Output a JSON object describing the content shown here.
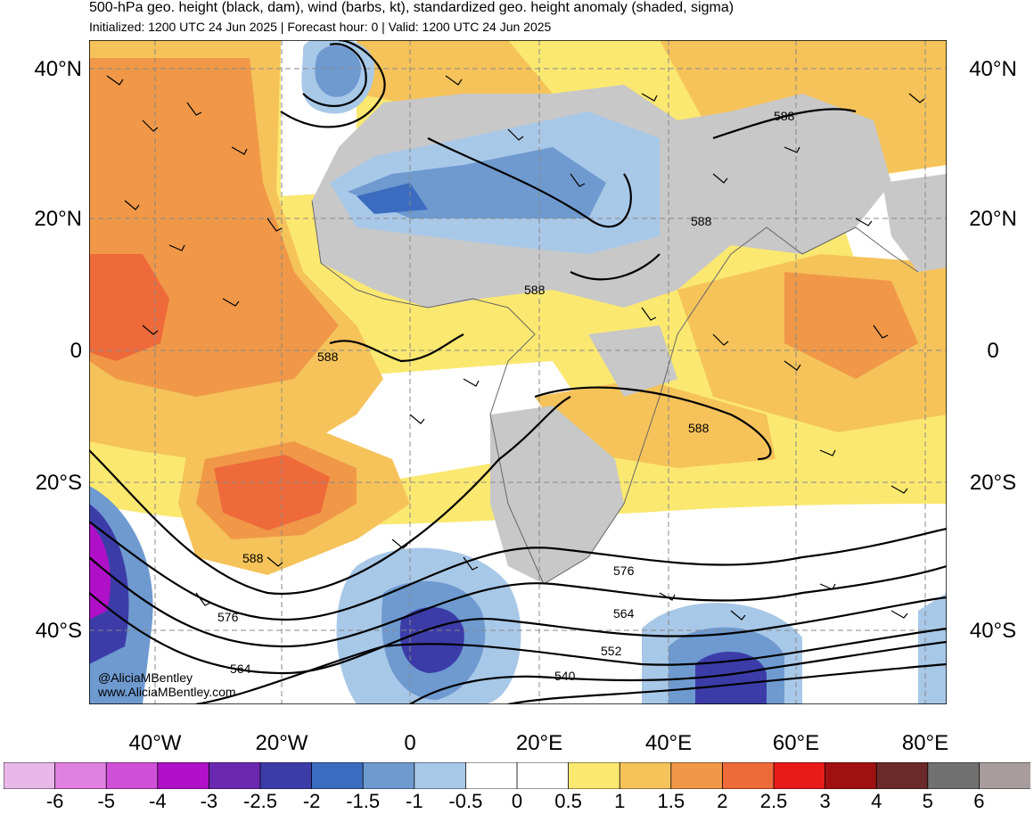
{
  "header": {
    "title": "500-hPa geo. height (black, dam), wind (barbs, kt), standardized geo. height anomaly (shaded, sigma)",
    "subtitle": "Initialized: 1200 UTC 24 Jun 2025 | Forecast hour: 0 | Valid: 1200 UTC 24 Jun 2025"
  },
  "axes": {
    "lat_left": [
      "40°N",
      "20°N",
      "0",
      "20°S",
      "40°S"
    ],
    "lat_right": [
      "40°N",
      "20°N",
      "0",
      "20°S",
      "40°S"
    ],
    "lon": [
      "40°W",
      "20°W",
      "0",
      "20°E",
      "40°E",
      "60°E",
      "80°E"
    ]
  },
  "contour_labels": [
    "588",
    "588",
    "588",
    "588",
    "588",
    "576",
    "576",
    "564",
    "564",
    "552",
    "540"
  ],
  "credit": {
    "handle": "@AliciaMBentley",
    "site": "www.AliciaMBentley.com"
  },
  "colorbar": {
    "labels": [
      "-6",
      "-5",
      "-4",
      "-3",
      "-2.5",
      "-2",
      "-1.5",
      "-1",
      "-0.5",
      "0",
      "0.5",
      "1",
      "1.5",
      "2",
      "2.5",
      "3",
      "4",
      "5",
      "6"
    ],
    "colors": [
      "#e8b8e8",
      "#e080e0",
      "#d050d8",
      "#b010c8",
      "#6a28b0",
      "#3c3ca8",
      "#3c6cc0",
      "#6e9ad0",
      "#a8c8e8",
      "#ffffff",
      "#ffffff",
      "#fbe870",
      "#f5c35a",
      "#f09848",
      "#ee6a3a",
      "#e81a1a",
      "#a01010",
      "#6a2a2a",
      "#707070",
      "#a89c9c"
    ]
  },
  "colors": {
    "land": "#c8c8c8",
    "pos_light": "#fbe870",
    "pos_mid": "#f5c35a",
    "pos_orange": "#f09848",
    "pos_red": "#ee6a3a",
    "neg_light": "#a8c8e8",
    "neg_mid": "#6e9ad0",
    "neg_dark": "#3c6cc0",
    "neg_deep": "#3c3ca8"
  }
}
